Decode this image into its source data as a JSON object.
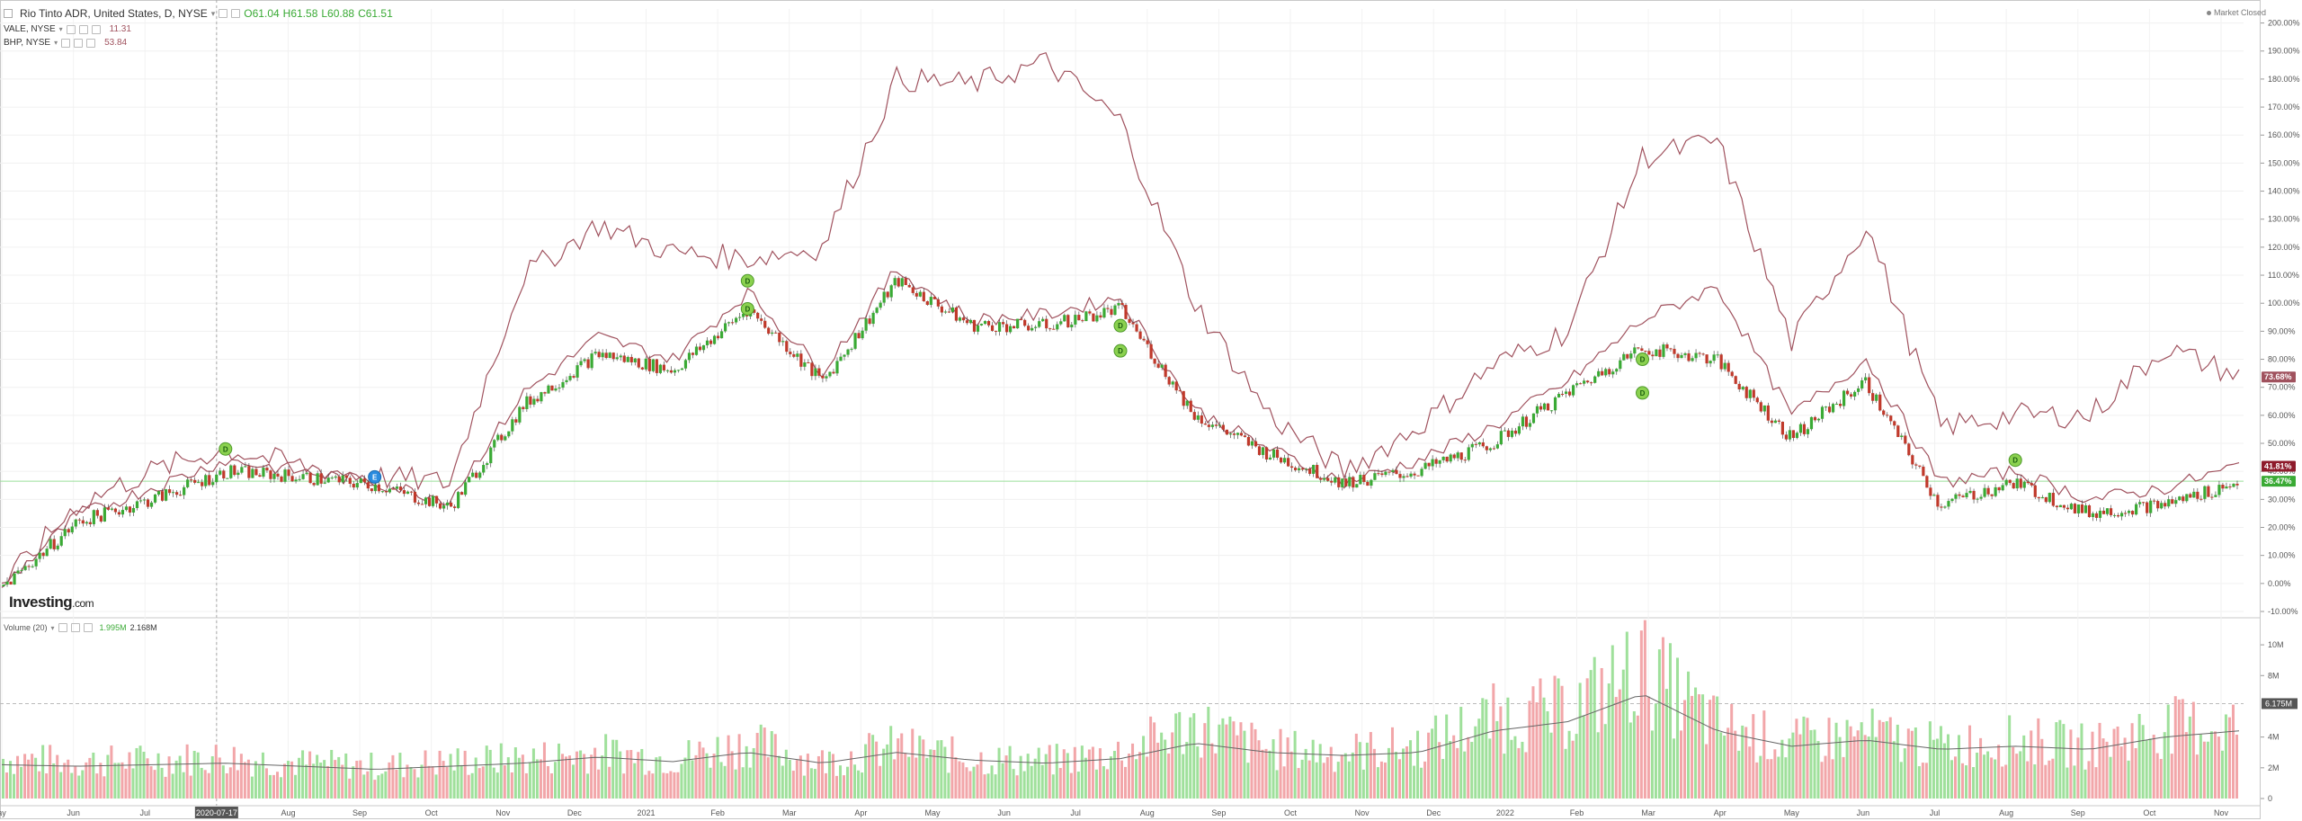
{
  "header": {
    "symbol_title": "Rio Tinto ADR, United States, D, NYSE",
    "ohlc": {
      "open": "O61.04",
      "high": "H61.58",
      "low": "L60.88",
      "close": "C61.51"
    },
    "compare": [
      {
        "name": "VALE, NYSE",
        "value": "11.31",
        "color": "#a0525e"
      },
      {
        "name": "BHP, NYSE",
        "value": "53.84",
        "color": "#a0525e"
      }
    ],
    "market_status": "Market Closed"
  },
  "logo": {
    "brand": "Investing",
    "suffix": ".com"
  },
  "volume_legend": {
    "name": "Volume (20)",
    "value1": "1.995M",
    "value2": "2.168M"
  },
  "colors": {
    "up": "#3aaa35",
    "down": "#c0392b",
    "compare_line": "#a0525e",
    "vol_up": "#9fe09b",
    "vol_down": "#f2a6a9",
    "baseline": "#9adf9a",
    "crosshair_date_bg": "#555"
  },
  "chart_data": [
    {
      "type": "line",
      "title": "Rio Tinto ADR, United States, D, NYSE",
      "y_scale": "percent change",
      "ylim": [
        -10,
        205
      ],
      "y_ticks": [
        "200.00%",
        "190.00%",
        "180.00%",
        "170.00%",
        "160.00%",
        "150.00%",
        "140.00%",
        "130.00%",
        "120.00%",
        "110.00%",
        "100.00%",
        "90.00%",
        "80.00%",
        "70.00%",
        "60.00%",
        "50.00%",
        "40.00%",
        "30.00%",
        "20.00%",
        "10.00%",
        "0.00%",
        "-10.00%"
      ],
      "x_ticks": [
        "ay",
        "Jun",
        "Jul",
        "2020-07-17",
        "Aug",
        "Sep",
        "Oct",
        "Nov",
        "Dec",
        "2021",
        "Feb",
        "Mar",
        "Apr",
        "May",
        "Jun",
        "Jul",
        "Aug",
        "Sep",
        "Oct",
        "Nov",
        "Dec",
        "2022",
        "Feb",
        "Mar",
        "Apr",
        "May",
        "Jun",
        "Jul",
        "Aug",
        "Sep",
        "Oct",
        "Nov"
      ],
      "crosshair_date": "2020-07-17",
      "baseline_pct": 36.47,
      "price_labels": [
        {
          "label": "73.68%",
          "value": 73.68,
          "color": "#a0525e"
        },
        {
          "label": "41.81%",
          "value": 41.81,
          "color": "#8e1a2b"
        },
        {
          "label": "36.47%",
          "value": 36.47,
          "color": "#3aaa35"
        }
      ],
      "series": [
        {
          "name": "Rio Tinto ADR",
          "style": "candles",
          "x": [
            "May 2020",
            "Jun 2020",
            "Jul 2020",
            "Aug 2020",
            "Sep 2020",
            "Oct 2020",
            "Nov 2020",
            "Dec 2020",
            "Jan 2021",
            "Feb 2021",
            "Mar 2021",
            "Apr 2021",
            "May 2021",
            "Jun 2021",
            "Jul 2021",
            "Aug 2021",
            "Sep 2021",
            "Oct 2021",
            "Nov 2021",
            "Dec 2021",
            "Jan 2022",
            "Feb 2022",
            "Mar 2022",
            "Apr 2022",
            "May 2022",
            "Jun 2022",
            "Jul 2022",
            "Aug 2022",
            "Sep 2022",
            "Oct 2022",
            "Nov 2022"
          ],
          "values": [
            -1,
            22,
            30,
            40,
            38,
            35,
            27,
            64,
            82,
            76,
            98,
            72,
            108,
            92,
            92,
            98,
            60,
            46,
            36,
            40,
            50,
            68,
            84,
            80,
            52,
            72,
            28,
            36,
            25,
            28,
            36
          ]
        },
        {
          "name": "VALE, NYSE",
          "style": "line",
          "x": [
            "May 2020",
            "Jun 2020",
            "Jul 2020",
            "Aug 2020",
            "Sep 2020",
            "Oct 2020",
            "Nov 2020",
            "Dec 2020",
            "Jan 2021",
            "Feb 2021",
            "Mar 2021",
            "Apr 2021",
            "May 2021",
            "Jun 2021",
            "Jul 2021",
            "Aug 2021",
            "Sep 2021",
            "Oct 2021",
            "Nov 2021",
            "Dec 2021",
            "Jan 2022",
            "Feb 2022",
            "Mar 2022",
            "Apr 2022",
            "May 2022",
            "Jun 2022",
            "Jul 2022",
            "Aug 2022",
            "Sep 2022",
            "Oct 2022",
            "Nov 2022"
          ],
          "values": [
            -1,
            28,
            40,
            48,
            42,
            38,
            36,
            110,
            128,
            118,
            116,
            120,
            180,
            178,
            186,
            165,
            100,
            60,
            40,
            56,
            78,
            90,
            152,
            158,
            86,
            128,
            56,
            60,
            60,
            84,
            74
          ]
        },
        {
          "name": "BHP, NYSE",
          "style": "line",
          "x": [
            "May 2020",
            "Jun 2020",
            "Jul 2020",
            "Aug 2020",
            "Sep 2020",
            "Oct 2020",
            "Nov 2020",
            "Dec 2020",
            "Jan 2021",
            "Feb 2021",
            "Mar 2021",
            "Apr 2021",
            "May 2021",
            "Jun 2021",
            "Jul 2021",
            "Aug 2021",
            "Sep 2021",
            "Oct 2021",
            "Nov 2021",
            "Dec 2021",
            "Jan 2022",
            "Feb 2022",
            "Mar 2022",
            "Apr 2022",
            "May 2022",
            "Jun 2022",
            "Jul 2022",
            "Aug 2022",
            "Sep 2022",
            "Oct 2022",
            "Nov 2022"
          ],
          "values": [
            -1,
            24,
            34,
            44,
            40,
            36,
            30,
            68,
            88,
            80,
            104,
            76,
            112,
            94,
            96,
            102,
            62,
            48,
            36,
            44,
            56,
            72,
            94,
            106,
            60,
            80,
            36,
            40,
            30,
            34,
            42
          ]
        }
      ],
      "events": [
        {
          "label": "D",
          "x": "Aug 2020",
          "value": 48
        },
        {
          "label": "E",
          "x": "Oct 2020",
          "value": 38
        },
        {
          "label": "D",
          "x": "Mar 2021",
          "value": 108
        },
        {
          "label": "D",
          "x": "Mar 2021",
          "value": 98
        },
        {
          "label": "D",
          "x": "Aug 2021",
          "value": 92
        },
        {
          "label": "D",
          "x": "Aug 2021",
          "value": 83
        },
        {
          "label": "D",
          "x": "Mar 2022",
          "value": 80
        },
        {
          "label": "D",
          "x": "Mar 2022",
          "value": 68
        },
        {
          "label": "D",
          "x": "Aug 2022",
          "value": 44
        }
      ]
    },
    {
      "type": "bar",
      "title": "Volume (20)",
      "ylim": [
        0,
        11
      ],
      "y_unit": "M",
      "y_ticks": [
        "10M",
        "8M",
        "6.175M",
        "4M",
        "2M",
        "0"
      ],
      "current_value_label": "6.175M",
      "categories": [
        "May 2020",
        "Jun 2020",
        "Jul 2020",
        "Aug 2020",
        "Sep 2020",
        "Oct 2020",
        "Nov 2020",
        "Dec 2020",
        "Jan 2021",
        "Feb 2021",
        "Mar 2021",
        "Apr 2021",
        "May 2021",
        "Jun 2021",
        "Jul 2021",
        "Aug 2021",
        "Sep 2021",
        "Oct 2021",
        "Nov 2021",
        "Dec 2021",
        "Jan 2022",
        "Feb 2022",
        "Mar 2022",
        "Apr 2022",
        "May 2022",
        "Jun 2022",
        "Jul 2022",
        "Aug 2022",
        "Sep 2022",
        "Oct 2022",
        "Nov 2022"
      ],
      "series": [
        {
          "name": "Volume",
          "values": [
            2.6,
            2.4,
            2.5,
            2.7,
            2.3,
            2.1,
            2.4,
            2.6,
            3.0,
            2.6,
            3.6,
            2.4,
            3.4,
            2.6,
            2.4,
            3.0,
            4.8,
            3.2,
            3.0,
            3.4,
            5.2,
            5.6,
            8.5,
            4.8,
            3.6,
            4.2,
            3.4,
            3.8,
            3.4,
            4.6,
            4.8
          ]
        },
        {
          "name": "MA 20",
          "values": [
            2.2,
            2.1,
            2.2,
            2.3,
            2.1,
            1.9,
            2.1,
            2.3,
            2.7,
            2.4,
            3.0,
            2.3,
            3.0,
            2.5,
            2.3,
            2.6,
            3.6,
            3.0,
            2.8,
            3.0,
            4.4,
            5.0,
            6.8,
            4.4,
            3.4,
            3.8,
            3.2,
            3.4,
            3.2,
            4.0,
            4.4
          ]
        }
      ]
    }
  ]
}
